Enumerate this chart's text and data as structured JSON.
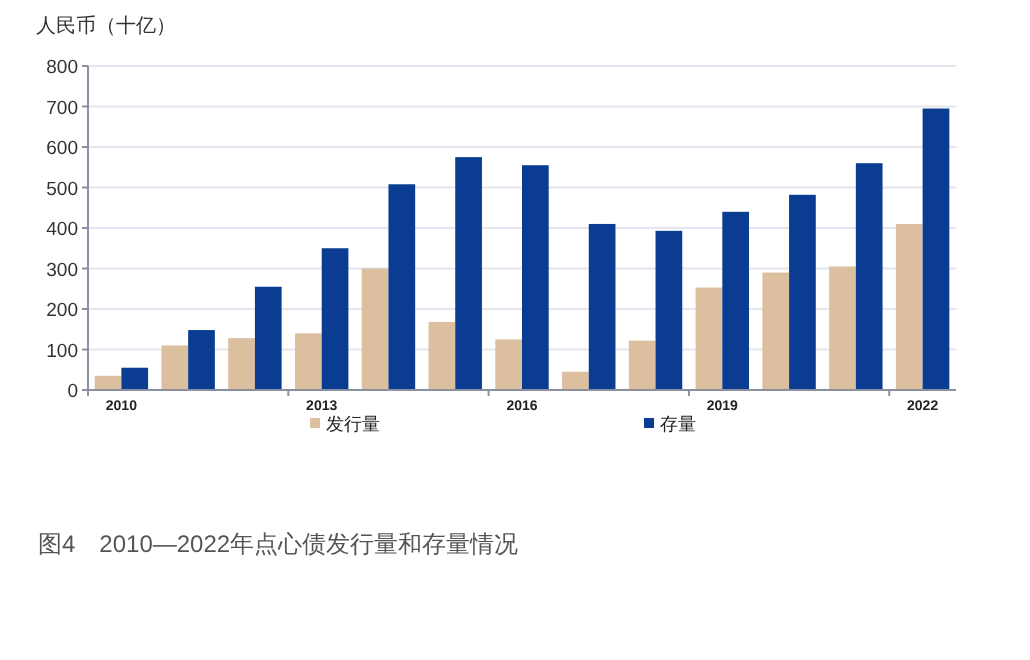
{
  "chart_data": {
    "type": "bar",
    "title": "图4　2010—2022年点心债发行量和存量情况",
    "ylabel": "人民币（十亿）",
    "categories": [
      "2010",
      null,
      null,
      "2013",
      null,
      null,
      "2016",
      null,
      null,
      "2019",
      null,
      null,
      "2022"
    ],
    "series": [
      {
        "name": "发行量",
        "color": "#dcbf9e",
        "values": [
          35,
          110,
          128,
          140,
          300,
          168,
          125,
          45,
          122,
          253,
          290,
          305,
          410
        ]
      },
      {
        "name": "存量",
        "color": "#0a3d91",
        "values": [
          55,
          148,
          255,
          350,
          508,
          575,
          555,
          410,
          393,
          440,
          482,
          560,
          695
        ]
      }
    ],
    "ylim": [
      0,
      800
    ],
    "yticks": [
      0,
      100,
      200,
      300,
      400,
      500,
      600,
      700,
      800
    ],
    "grid": "y",
    "legend": "bottom"
  }
}
